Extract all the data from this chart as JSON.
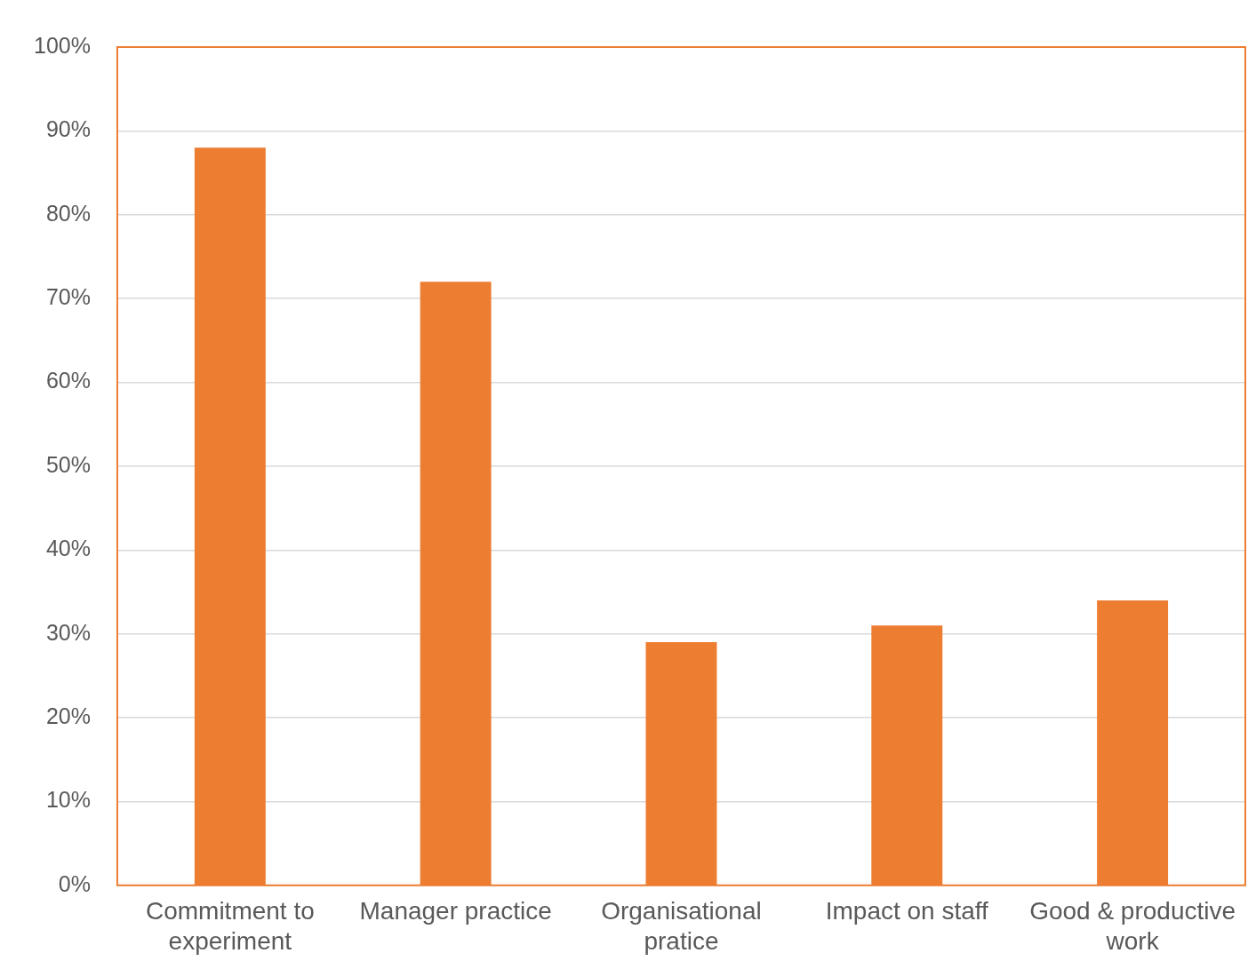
{
  "chart_data": {
    "type": "bar",
    "categories": [
      "Commitment to experiment",
      "Manager practice",
      "Organisational pratice",
      "Impact on staff",
      "Good & productive work"
    ],
    "values": [
      88,
      72,
      29,
      31,
      34
    ],
    "color": "#ed7d31",
    "ylim": [
      0,
      100
    ],
    "yticks": [
      {
        "value": 0,
        "label": "0%"
      },
      {
        "value": 10,
        "label": "10%"
      },
      {
        "value": 20,
        "label": "20%"
      },
      {
        "value": 30,
        "label": "30%"
      },
      {
        "value": 40,
        "label": "40%"
      },
      {
        "value": 50,
        "label": "50%"
      },
      {
        "value": 60,
        "label": "60%"
      },
      {
        "value": 70,
        "label": "70%"
      },
      {
        "value": 80,
        "label": "80%"
      },
      {
        "value": 90,
        "label": "90%"
      },
      {
        "value": 100,
        "label": "100%"
      }
    ],
    "grid": "y",
    "legend": false
  }
}
